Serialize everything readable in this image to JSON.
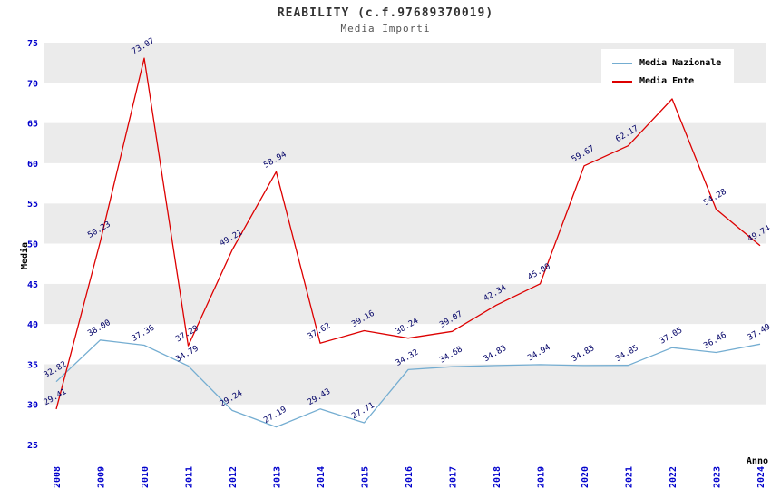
{
  "title": "REABILITY (c.f.97689370019)",
  "subtitle": "Media Importi",
  "chart_data": {
    "type": "line",
    "x": [
      2008,
      2009,
      2010,
      2011,
      2012,
      2013,
      2014,
      2015,
      2016,
      2017,
      2018,
      2019,
      2020,
      2021,
      2022,
      2023,
      2024
    ],
    "xlabel": "Anno",
    "ylabel": "Media",
    "ylim": [
      25,
      75
    ],
    "ytick_step": 5,
    "grid": "horizontal-bands",
    "legend_position": "top-right",
    "series": [
      {
        "name": "Media Nazionale",
        "color": "#74add1",
        "values": [
          32.82,
          38.0,
          37.36,
          34.79,
          29.24,
          27.19,
          29.43,
          27.71,
          34.32,
          34.68,
          34.83,
          34.94,
          34.83,
          34.85,
          37.05,
          36.46,
          37.49
        ],
        "labels": [
          "32.82",
          "38.00",
          "37.36",
          "34.79",
          "29.24",
          "27.19",
          "29.43",
          "27.71",
          "34.32",
          "34.68",
          "34.83",
          "34.94",
          "34.83",
          "34.85",
          "37.05",
          "36.46",
          "37.49"
        ]
      },
      {
        "name": "Media Ente",
        "color": "#dd0000",
        "values": [
          29.41,
          50.23,
          73.07,
          37.29,
          49.21,
          58.94,
          37.62,
          39.16,
          38.24,
          39.07,
          42.34,
          45.0,
          59.67,
          62.17,
          68.0,
          54.28,
          49.74
        ],
        "labels": [
          "29.41",
          "50.23",
          "73.07",
          "37.29",
          "49.21",
          "58.94",
          "37.62",
          "39.16",
          "38.24",
          "39.07",
          "42.34",
          "45.00",
          "59.67",
          "62.17",
          "",
          "54.28",
          "49.74"
        ]
      }
    ],
    "colors": {
      "band_gray": "#ebebeb",
      "band_white": "#ffffff",
      "tick_label": "#0000cc",
      "point_label": "#000066",
      "axis_title": "#000000"
    }
  }
}
